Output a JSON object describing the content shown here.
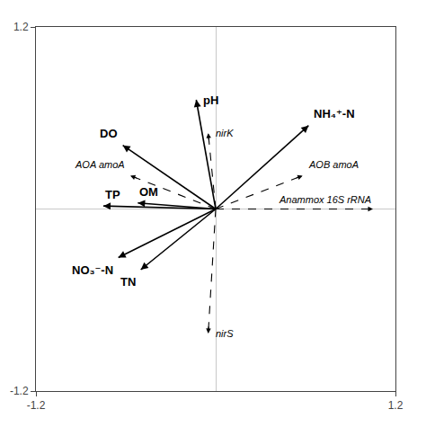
{
  "chart_data": {
    "type": "biplot",
    "xlim": [
      -1.2,
      1.2
    ],
    "ylim": [
      -1.2,
      1.2
    ],
    "xticks": [
      -1.2,
      1.2
    ],
    "yticks": [
      -1.2,
      1.2
    ],
    "grid": false,
    "series": [
      {
        "line_style": "solid",
        "color": "#000000",
        "labels": [
          "pH",
          "NH₄⁺-N",
          "DO",
          "TP",
          "OM",
          "NO₃⁻-N",
          "TN"
        ],
        "x": [
          -0.13,
          0.62,
          -0.62,
          -0.75,
          -0.52,
          -0.65,
          -0.5
        ],
        "y": [
          0.72,
          0.55,
          0.42,
          0.02,
          0.04,
          -0.32,
          -0.4
        ]
      },
      {
        "line_style": "dashed",
        "color": "#000000",
        "labels": [
          "Anammox 16S rRNA",
          "nirK",
          "nirS",
          "AOA amoA",
          "AOB amoA"
        ],
        "x": [
          1.05,
          -0.05,
          -0.05,
          -0.57,
          0.58
        ],
        "y": [
          0.0,
          0.5,
          -0.82,
          0.22,
          0.22
        ]
      }
    ]
  }
}
